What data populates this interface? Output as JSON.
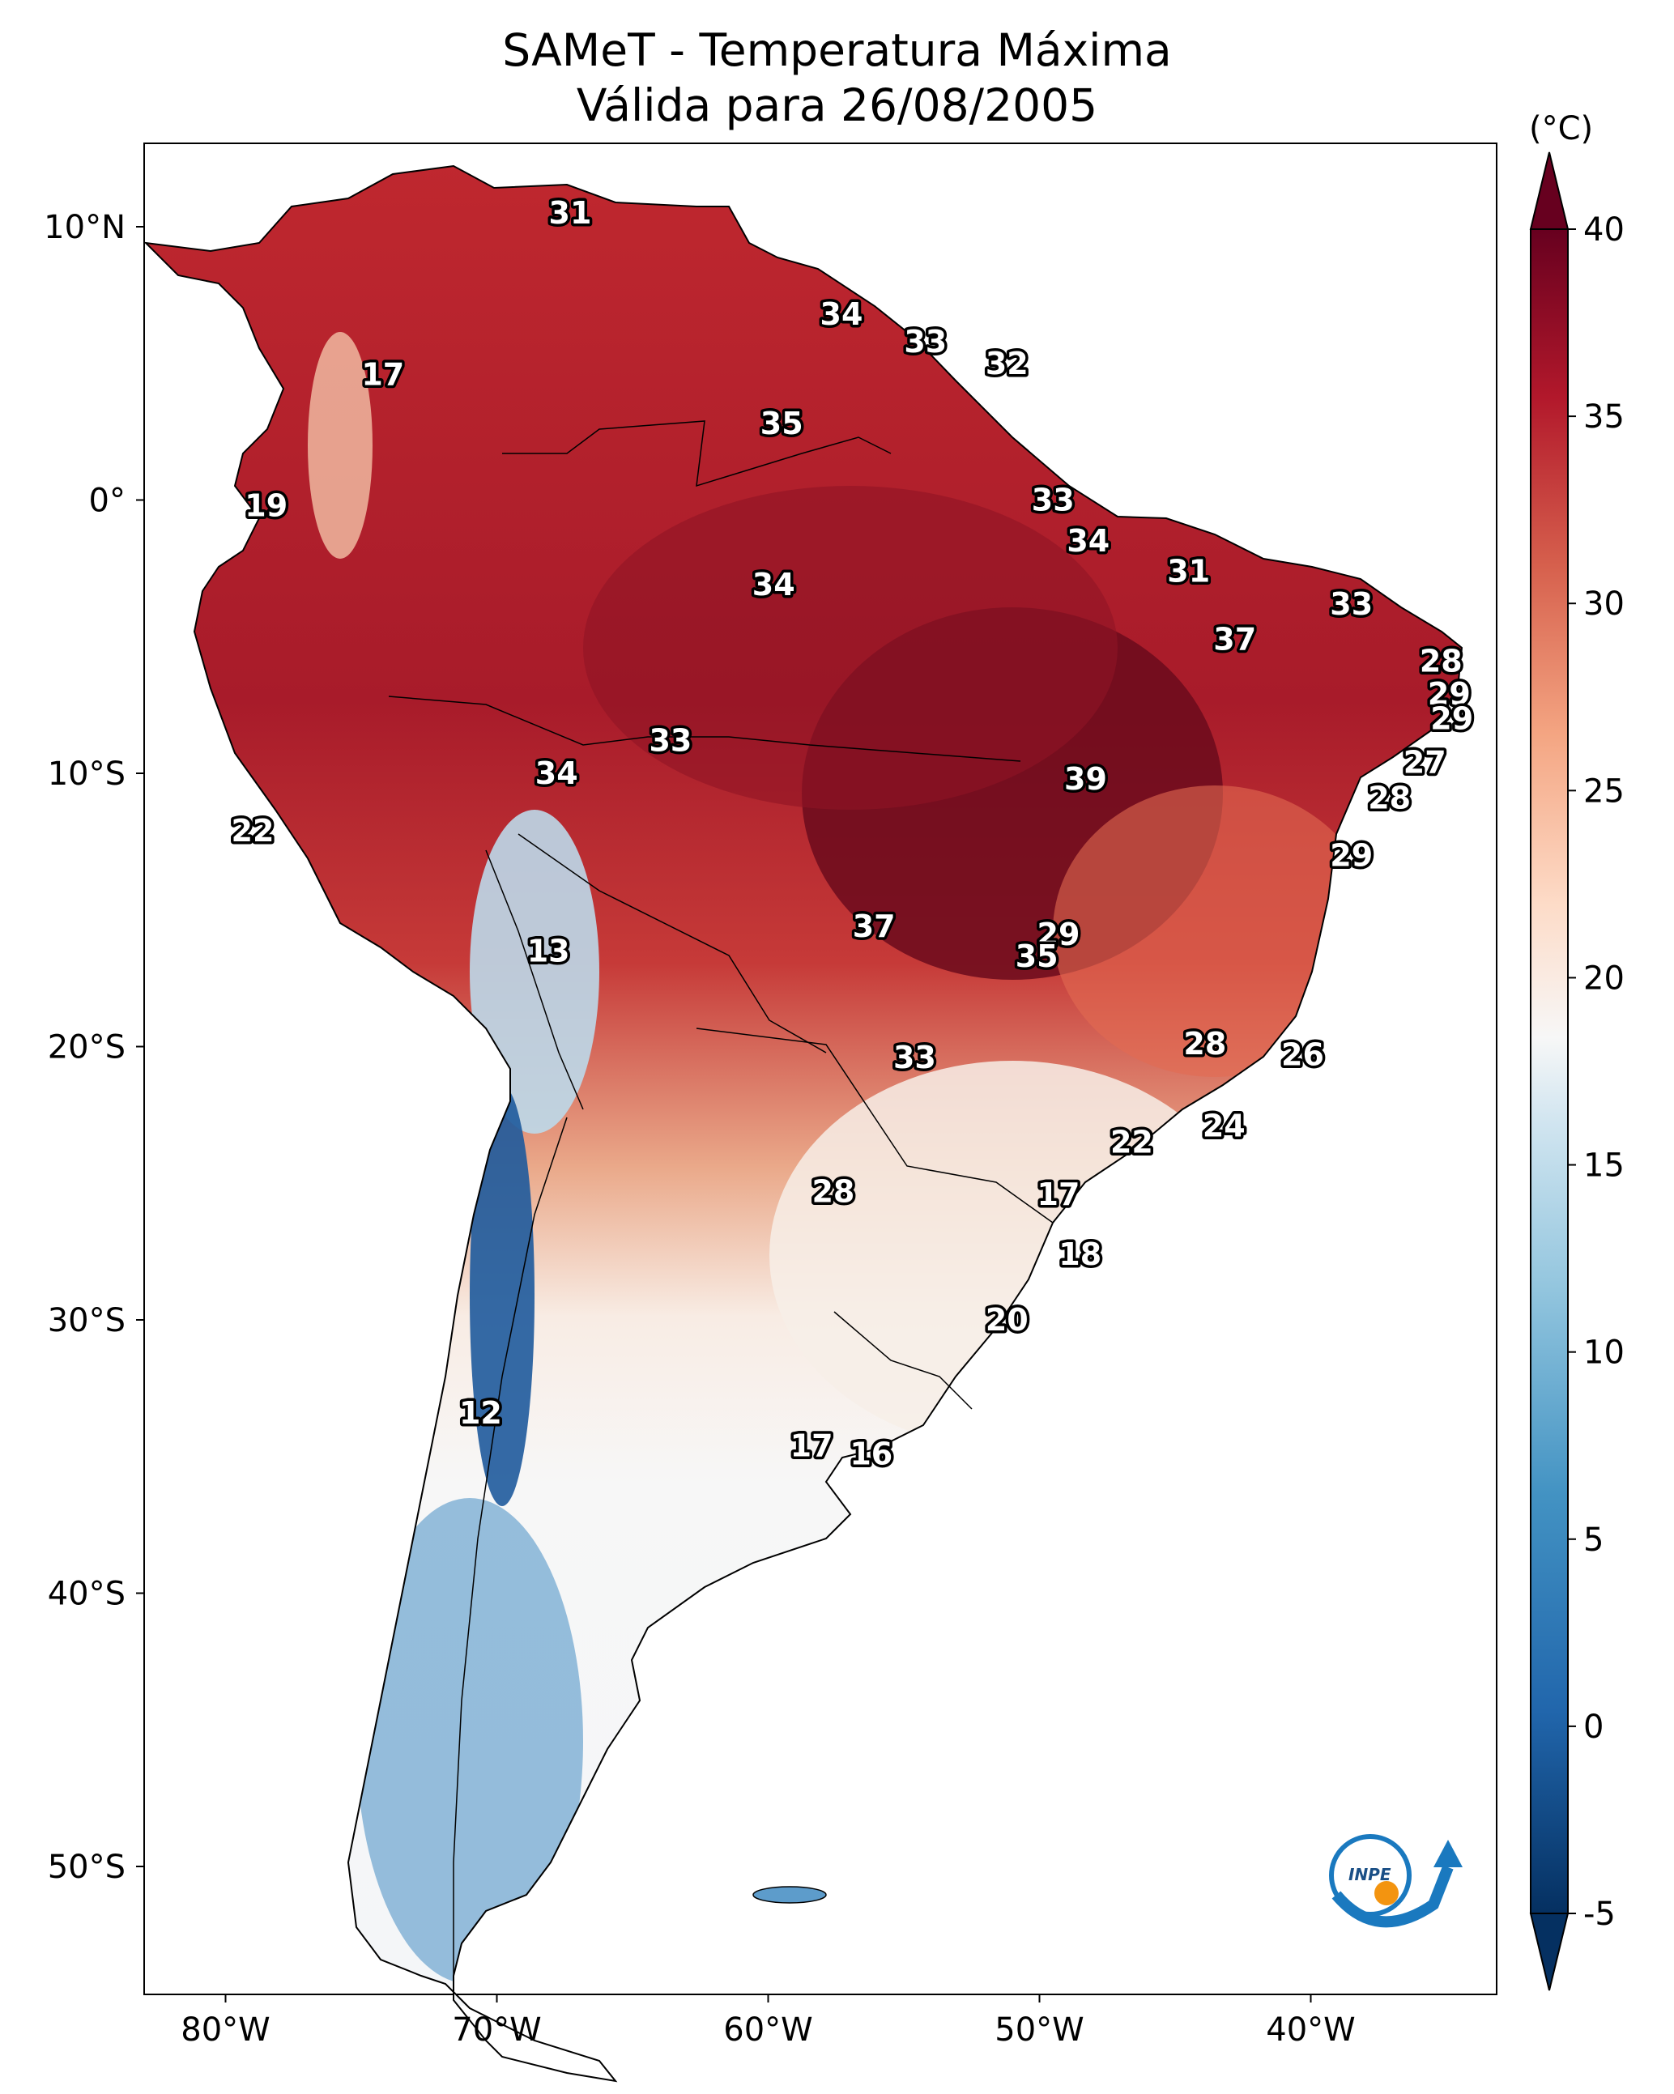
{
  "title": {
    "line1": "SAMeT - Temperatura Máxima",
    "line2": "Válida para 26/08/2005"
  },
  "colorbar": {
    "unit": "(°C)",
    "ticks": [
      "40",
      "35",
      "30",
      "25",
      "20",
      "15",
      "10",
      "5",
      "0",
      "-5"
    ],
    "range": [
      -5,
      40
    ],
    "colormap": "RdBu_r",
    "extend": "both"
  },
  "axes": {
    "lat_labels": [
      "10°N",
      "0°",
      "10°S",
      "20°S",
      "30°S",
      "40°S",
      "50°S"
    ],
    "lon_labels": [
      "80°W",
      "70°W",
      "60°W",
      "50°W",
      "40°W"
    ]
  },
  "station_values": [
    {
      "lon": -67.3,
      "lat": 10.5,
      "text": "31"
    },
    {
      "lon": -74.2,
      "lat": 4.6,
      "text": "17"
    },
    {
      "lon": -78.5,
      "lat": -0.2,
      "text": "19"
    },
    {
      "lon": -59.5,
      "lat": 2.8,
      "text": "35"
    },
    {
      "lon": -57.3,
      "lat": 6.8,
      "text": "34"
    },
    {
      "lon": -54.2,
      "lat": 5.8,
      "text": "33"
    },
    {
      "lon": -51.2,
      "lat": 5.0,
      "text": "32"
    },
    {
      "lon": -49.5,
      "lat": 0.0,
      "text": "33"
    },
    {
      "lon": -48.2,
      "lat": -1.5,
      "text": "34"
    },
    {
      "lon": -44.5,
      "lat": -2.6,
      "text": "31"
    },
    {
      "lon": -38.5,
      "lat": -3.8,
      "text": "33"
    },
    {
      "lon": -42.8,
      "lat": -5.1,
      "text": "37"
    },
    {
      "lon": -59.8,
      "lat": -3.1,
      "text": "34"
    },
    {
      "lon": -35.2,
      "lat": -5.9,
      "text": "28"
    },
    {
      "lon": -34.9,
      "lat": -7.1,
      "text": "29"
    },
    {
      "lon": -34.8,
      "lat": -8.0,
      "text": "29"
    },
    {
      "lon": -35.8,
      "lat": -9.6,
      "text": "27"
    },
    {
      "lon": -37.1,
      "lat": -10.9,
      "text": "28"
    },
    {
      "lon": -38.5,
      "lat": -13.0,
      "text": "29"
    },
    {
      "lon": -48.3,
      "lat": -10.2,
      "text": "39"
    },
    {
      "lon": -63.6,
      "lat": -8.8,
      "text": "33"
    },
    {
      "lon": -67.8,
      "lat": -10.0,
      "text": "34"
    },
    {
      "lon": -79.0,
      "lat": -12.1,
      "text": "22"
    },
    {
      "lon": -68.1,
      "lat": -16.5,
      "text": "13"
    },
    {
      "lon": -56.1,
      "lat": -15.6,
      "text": "37"
    },
    {
      "lon": -49.3,
      "lat": -15.9,
      "text": "29"
    },
    {
      "lon": -50.1,
      "lat": -16.7,
      "text": "35"
    },
    {
      "lon": -54.6,
      "lat": -20.4,
      "text": "33"
    },
    {
      "lon": -43.9,
      "lat": -19.9,
      "text": "28"
    },
    {
      "lon": -40.3,
      "lat": -20.3,
      "text": "26"
    },
    {
      "lon": -46.6,
      "lat": -23.5,
      "text": "22"
    },
    {
      "lon": -43.2,
      "lat": -22.9,
      "text": "24"
    },
    {
      "lon": -57.6,
      "lat": -25.3,
      "text": "28"
    },
    {
      "lon": -49.3,
      "lat": -25.4,
      "text": "17"
    },
    {
      "lon": -48.5,
      "lat": -27.6,
      "text": "18"
    },
    {
      "lon": -51.2,
      "lat": -30.0,
      "text": "20"
    },
    {
      "lon": -70.6,
      "lat": -33.4,
      "text": "12"
    },
    {
      "lon": -58.4,
      "lat": -34.6,
      "text": "17"
    },
    {
      "lon": -56.2,
      "lat": -34.9,
      "text": "16"
    }
  ],
  "logo": {
    "text": "INPE"
  },
  "colors": {
    "ocean": "#ffffff",
    "very_hot": "#780a22",
    "hot": "#b7212f",
    "warm": "#e06a50",
    "mild": "#f6d2be",
    "neutral": "#f7f7f7",
    "cool": "#b4d6e9",
    "cold": "#4a8fc3",
    "very_cold": "#0e3e75",
    "logo_blue": "#1a79bf",
    "logo_orange": "#f39410"
  }
}
